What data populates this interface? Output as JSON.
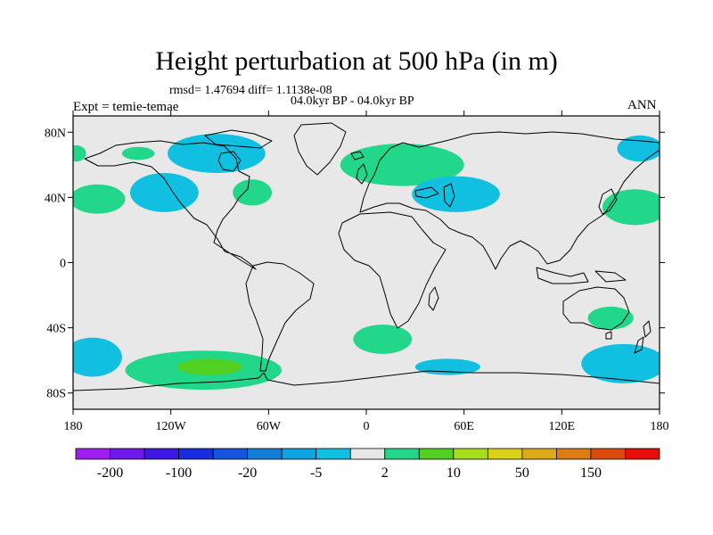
{
  "title": "Height perturbation at 500 hPa (in m)",
  "stats": "rmsd= 1.47694 diff= 1.1138e-08",
  "period": "04.0kyr BP - 04.0kyr BP",
  "expt": "Expt = temie-temae",
  "season": "ANN",
  "map": {
    "lon_range": [
      -180,
      180
    ],
    "lat_range": [
      -90,
      90
    ],
    "background_color": "#e8e8e8",
    "lon_ticks": [
      {
        "value": -180,
        "label": "180"
      },
      {
        "value": -120,
        "label": "120W"
      },
      {
        "value": -60,
        "label": "60W"
      },
      {
        "value": 0,
        "label": "0"
      },
      {
        "value": 60,
        "label": "60E"
      },
      {
        "value": 120,
        "label": "120E"
      },
      {
        "value": 180,
        "label": "180"
      }
    ],
    "lat_ticks": [
      {
        "value": 80,
        "label": "80N"
      },
      {
        "value": 40,
        "label": "40N"
      },
      {
        "value": 0,
        "label": "0"
      },
      {
        "value": -40,
        "label": "40S"
      },
      {
        "value": -80,
        "label": "80S"
      }
    ],
    "anomalies": [
      {
        "name": "positive-anomaly-north-pacific-west",
        "lon": -178,
        "lat": 67,
        "rlon": 6,
        "rlat": 5,
        "color": "#22d789"
      },
      {
        "name": "positive-anomaly-alaska",
        "lon": -140,
        "lat": 67,
        "rlon": 10,
        "rlat": 4,
        "color": "#22d789"
      },
      {
        "name": "negative-anomaly-canada",
        "lon": -92,
        "lat": 67,
        "rlon": 30,
        "rlat": 12,
        "color": "#11c0e0"
      },
      {
        "name": "positive-anomaly-northeast-pacific",
        "lon": -165,
        "lat": 39,
        "rlon": 17,
        "rlat": 9,
        "color": "#22d789"
      },
      {
        "name": "negative-anomaly-north-pacific",
        "lon": -124,
        "lat": 43,
        "rlon": 21,
        "rlat": 12,
        "color": "#11c0e0"
      },
      {
        "name": "positive-anomaly-north-atlantic-west",
        "lon": -70,
        "lat": 43,
        "rlon": 12,
        "rlat": 8,
        "color": "#22d789"
      },
      {
        "name": "positive-anomaly-europe",
        "lon": 22,
        "lat": 60,
        "rlon": 38,
        "rlat": 13,
        "color": "#22d789"
      },
      {
        "name": "negative-anomaly-central-asia",
        "lon": 55,
        "lat": 42,
        "rlon": 27,
        "rlat": 11,
        "color": "#11c0e0"
      },
      {
        "name": "negative-anomaly-northeast-asia",
        "lon": 168,
        "lat": 70,
        "rlon": 14,
        "rlat": 8,
        "color": "#11c0e0"
      },
      {
        "name": "positive-anomaly-northwest-pacific",
        "lon": 165,
        "lat": 34,
        "rlon": 20,
        "rlat": 11,
        "color": "#22d789"
      },
      {
        "name": "negative-anomaly-south-pacific-west",
        "lon": -168,
        "lat": -58,
        "rlon": 18,
        "rlat": 12,
        "color": "#11c0e0"
      },
      {
        "name": "positive-anomaly-south-pacific",
        "lon": -100,
        "lat": -66,
        "rlon": 48,
        "rlat": 12,
        "color": "#22d789"
      },
      {
        "name": "positive-anomaly-south-pacific-core",
        "lon": -96,
        "lat": -64,
        "rlon": 20,
        "rlat": 5,
        "color": "#52d021"
      },
      {
        "name": "positive-anomaly-south-atlantic",
        "lon": 10,
        "lat": -47,
        "rlon": 18,
        "rlat": 9,
        "color": "#22d789"
      },
      {
        "name": "negative-anomaly-southern-ocean-indian",
        "lon": 50,
        "lat": -64,
        "rlon": 20,
        "rlat": 5,
        "color": "#11c0e0"
      },
      {
        "name": "positive-anomaly-australia",
        "lon": 150,
        "lat": -34,
        "rlon": 14,
        "rlat": 7,
        "color": "#22d789"
      },
      {
        "name": "negative-anomaly-southern-ocean-pacific",
        "lon": 158,
        "lat": -62,
        "rlon": 26,
        "rlat": 12,
        "color": "#11c0e0"
      }
    ]
  },
  "colorbar": {
    "colors": [
      "#a01df0",
      "#6f19ea",
      "#3f18e6",
      "#1a2ce0",
      "#1555dd",
      "#0f7fd9",
      "#0ea3e2",
      "#11c0e0",
      "#e8e8e8",
      "#22d789",
      "#52d021",
      "#a8dc1c",
      "#d8d219",
      "#dcaa16",
      "#dd7c10",
      "#dd4a0d",
      "#e60d0a"
    ],
    "labels": [
      {
        "boundary": 1,
        "label": "-200"
      },
      {
        "boundary": 3,
        "label": "-100"
      },
      {
        "boundary": 5,
        "label": "-20"
      },
      {
        "boundary": 7,
        "label": "-5"
      },
      {
        "boundary": 9,
        "label": "2"
      },
      {
        "boundary": 11,
        "label": "10"
      },
      {
        "boundary": 13,
        "label": "50"
      },
      {
        "boundary": 15,
        "label": "150"
      }
    ]
  }
}
